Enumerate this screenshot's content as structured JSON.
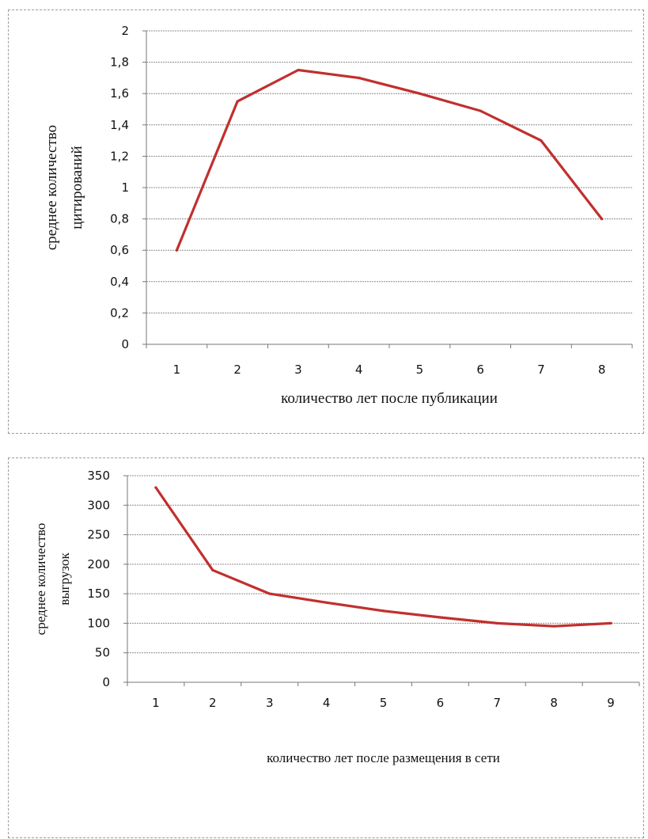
{
  "chart_data": [
    {
      "type": "line",
      "x": [
        1,
        2,
        3,
        4,
        5,
        6,
        7,
        8
      ],
      "categories": [
        "1",
        "2",
        "3",
        "4",
        "5",
        "6",
        "7",
        "8"
      ],
      "series": [
        {
          "values": [
            0.6,
            1.55,
            1.75,
            1.7,
            1.6,
            1.49,
            1.3,
            0.8
          ],
          "color": "#c0302e"
        }
      ],
      "ylim": [
        0,
        2
      ],
      "yticks": [
        "0",
        "0,2",
        "0,4",
        "0,6",
        "0,8",
        "1",
        "1,2",
        "1,4",
        "1,6",
        "1,8",
        "2"
      ],
      "ylabel_lines": [
        "среднее количество",
        "цитирований"
      ],
      "xlabel": "количество лет после публикации",
      "grid": true
    },
    {
      "type": "line",
      "x": [
        1,
        2,
        3,
        4,
        5,
        6,
        7,
        8,
        9
      ],
      "categories": [
        "1",
        "2",
        "3",
        "4",
        "5",
        "6",
        "7",
        "8",
        "9"
      ],
      "series": [
        {
          "values": [
            330,
            190,
            150,
            135,
            121,
            110,
            100,
            95,
            100
          ],
          "color": "#c0302e"
        }
      ],
      "ylim": [
        0,
        350
      ],
      "yticks": [
        "0",
        "50",
        "100",
        "150",
        "200",
        "250",
        "300",
        "350"
      ],
      "ylabel_lines": [
        "среднее количество",
        "выгрузок"
      ],
      "xlabel": "количество лет после размещения в сети",
      "grid": true
    }
  ]
}
